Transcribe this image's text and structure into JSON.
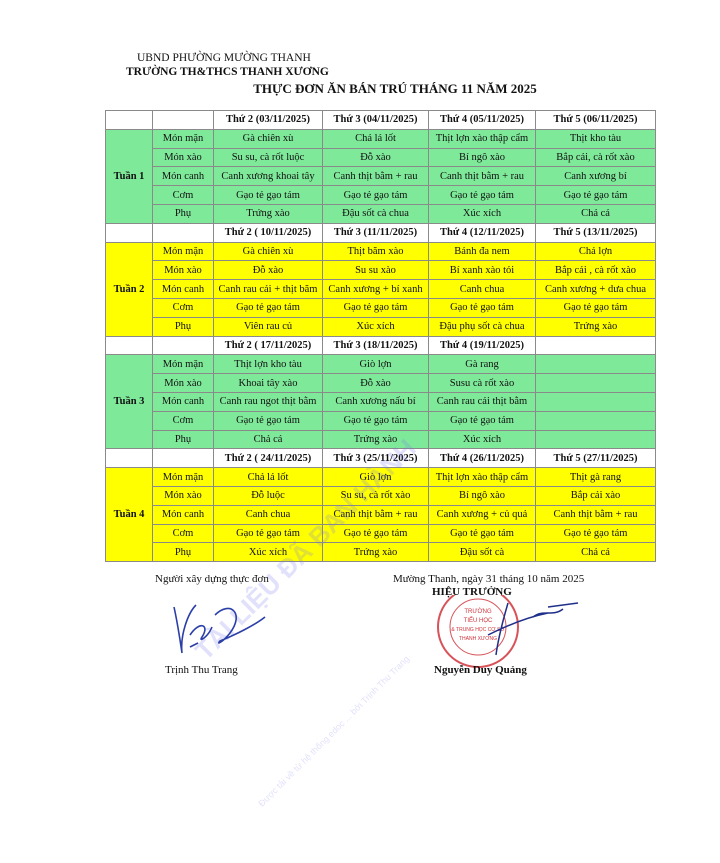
{
  "header": {
    "org_line1": "UBND PHƯỜNG MƯỜNG THANH",
    "org_line2": "TRƯỜNG TH&THCS THANH XƯƠNG",
    "title": "THỰC ĐƠN ĂN BÁN TRÚ THÁNG 11 NĂM 2025"
  },
  "row_labels": [
    "Món mặn",
    "Món xào",
    "Món canh",
    "Cơm",
    "Phụ"
  ],
  "weeks": [
    {
      "label": "Tuần 1",
      "color": "#7fe99a",
      "days": [
        "Thứ 2 (03/11/2025)",
        "Thứ 3 (04/11/2025)",
        "Thứ 4 (05/11/2025)",
        "Thứ 5 (06/11/2025)"
      ],
      "rows": [
        [
          "Gà chiên xù",
          "Chả lá lốt",
          "Thịt lợn xào thập cẩm",
          "Thịt kho tàu"
        ],
        [
          "Su su, cà rốt luộc",
          "Đỗ xào",
          "Bí ngô xào",
          "Bắp cải, cà rốt xào"
        ],
        [
          "Canh xương khoai tây",
          "Canh thịt bằm + rau",
          "Canh thịt bằm + rau",
          "Canh xương bí"
        ],
        [
          "Gạo tẻ gạo tám",
          "Gạo tẻ gạo tám",
          "Gạo tẻ gạo tám",
          "Gạo tẻ gạo tám"
        ],
        [
          "Trứng xào",
          "Đậu sốt cà chua",
          "Xúc xích",
          "Chả cá"
        ]
      ]
    },
    {
      "label": "Tuần 2",
      "color": "#ffff00",
      "days": [
        "Thứ 2 ( 10/11/2025)",
        "Thứ 3 (11/11/2025)",
        "Thứ 4 (12/11/2025)",
        "Thứ 5 (13/11/2025)"
      ],
      "rows": [
        [
          "Gà chiên xù",
          "Thịt băm xào",
          "Bánh đa nem",
          "Chả lợn"
        ],
        [
          "Đỗ xào",
          "Su su xào",
          "Bí xanh xào tỏi",
          "Bắp cải , cà rốt xào"
        ],
        [
          "Canh rau cải + thịt băm",
          "Canh xương + bí xanh",
          "Canh chua",
          "Canh xương + dưa chua"
        ],
        [
          "Gạo tẻ gạo tám",
          "Gạo tẻ gạo tám",
          "Gạo tẻ gạo tám",
          "Gạo tẻ gạo tám"
        ],
        [
          "Viên rau củ",
          "Xúc xích",
          "Đậu phụ sốt cà chua",
          "Trứng xào"
        ]
      ]
    },
    {
      "label": "Tuần 3",
      "color": "#7fe99a",
      "days": [
        "Thứ 2 ( 17/11/2025)",
        "Thứ 3 (18/11/2025)",
        "Thứ 4 (19/11/2025)",
        ""
      ],
      "rows": [
        [
          "Thịt lợn kho tàu",
          "Giò lợn",
          "Gà rang",
          ""
        ],
        [
          "Khoai tây xào",
          "Đỗ xào",
          "Susu cà rốt xào",
          ""
        ],
        [
          "Canh rau ngot thịt bằm",
          "Canh xương nấu bí",
          "Canh rau cải thịt bằm",
          ""
        ],
        [
          "Gạo tẻ gạo tám",
          "Gạo tẻ gạo tám",
          "Gạo tẻ gạo tám",
          ""
        ],
        [
          "Chả cá",
          "Trứng xào",
          "Xúc xích",
          ""
        ]
      ]
    },
    {
      "label": "Tuần 4",
      "color": "#ffff00",
      "days": [
        "Thứ 2 ( 24/11/2025)",
        "Thứ 3 (25/11/2025)",
        "Thứ 4 (26/11/2025)",
        "Thứ 5 (27/11/2025)"
      ],
      "rows": [
        [
          "Chả lá lốt",
          "Giò lợn",
          "Thịt lợn xào thập cẩm",
          "Thịt gà rang"
        ],
        [
          "Đỗ luộc",
          "Su su, cà rốt xào",
          "Bí ngô xào",
          "Bắp cải xào"
        ],
        [
          "Canh chua",
          "Canh thịt bằm + rau",
          "Canh xương + củ quả",
          "Canh thịt bằm + rau"
        ],
        [
          "Gạo tẻ gạo tám",
          "Gạo tẻ gạo tám",
          "Gạo tẻ gạo tám",
          "Gạo tẻ gạo tám"
        ],
        [
          "Xúc xích",
          "Trứng xào",
          "Đậu sốt cà",
          "Chả cá"
        ]
      ]
    }
  ],
  "footer": {
    "left_caption": "Người xây dựng thực đơn",
    "left_name": "Trịnh Thu Trang",
    "right_caption": "Mường Thanh, ngày 31 tháng 10 năm 2025",
    "right_role": "HIỆU TRƯỞNG",
    "right_name": "Nguyễn Duy Quảng",
    "stamp_text": [
      "TRƯỜNG",
      "TIỂU HỌC",
      "& TRUNG HỌC CƠ SỞ",
      "THANH XƯƠNG"
    ],
    "stamp_color": "#d0343c"
  },
  "watermark": {
    "main": "TÀI LIỆU ĐÃ BAN HÀNH",
    "sub": "Được tải về từ hệ thống edoc ... bởi Trịnh Thu Trang"
  }
}
